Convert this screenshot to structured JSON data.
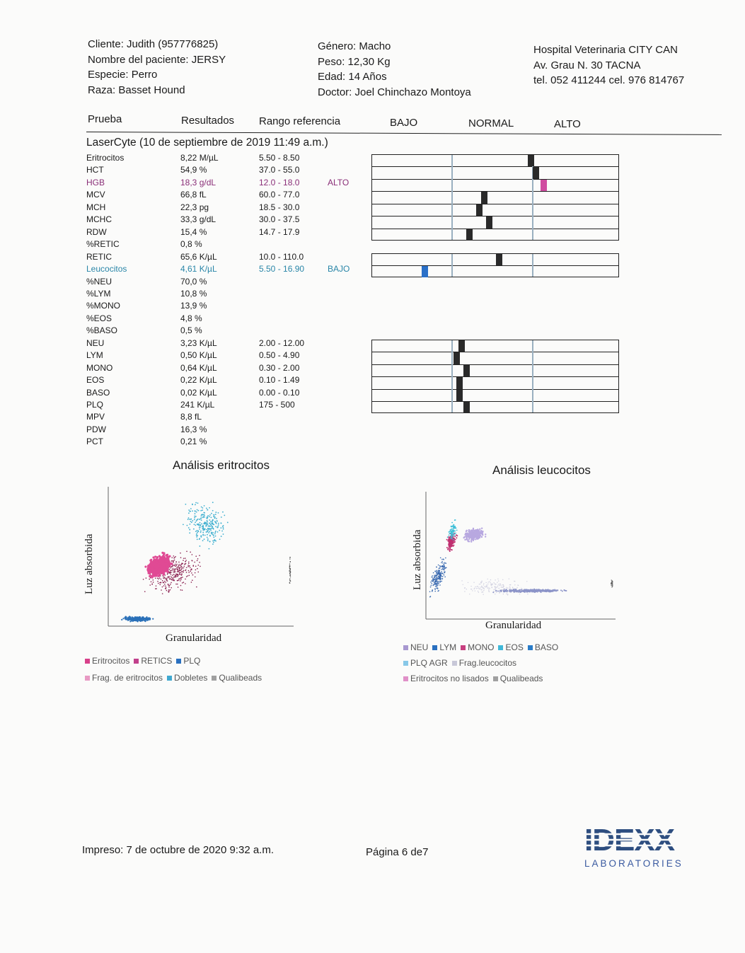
{
  "client": {
    "cliente": "Cliente: Judith (957776825)",
    "paciente": "Nombre del paciente: JERSY",
    "especie": "Especie: Perro",
    "raza": "Raza: Basset Hound"
  },
  "patient": {
    "genero": "Género: Macho",
    "peso": "Peso: 12,30 Kg",
    "edad": "Edad: 14 Años",
    "doctor": "Doctor: Joel  Chinchazo Montoya"
  },
  "hospital": {
    "name": "Hospital Veterinaria CITY CAN",
    "address": "Av. Grau N. 30 TACNA",
    "phone": "tel. 052 411244 cel. 976 814767"
  },
  "columns": {
    "prueba": "Prueba",
    "resultados": "Resultados",
    "rango": "Rango referencia",
    "bajo": "BAJO",
    "normal": "NORMAL",
    "alto": "ALTO"
  },
  "session": "LaserCyte (10 de septiembre de 2019 11:49 a.m.)",
  "results": [
    {
      "name": "Eritrocitos",
      "value": "8,22 M/µL",
      "range": "5.50 - 8.50",
      "flag": "",
      "status": "normal",
      "position": 0.64
    },
    {
      "name": "HCT",
      "value": "54,9 %",
      "range": "37.0 - 55.0",
      "flag": "",
      "status": "normal",
      "position": 0.66
    },
    {
      "name": "HGB",
      "value": "18,3 g/dL",
      "range": "12.0 - 18.0",
      "flag": "ALTO",
      "status": "high",
      "position": 0.69
    },
    {
      "name": "MCV",
      "value": "66,8 fL",
      "range": "60.0 - 77.0",
      "flag": "",
      "status": "normal",
      "position": 0.45
    },
    {
      "name": "MCH",
      "value": "22,3 pg",
      "range": "18.5 - 30.0",
      "flag": "",
      "status": "normal",
      "position": 0.43
    },
    {
      "name": "MCHC",
      "value": "33,3 g/dL",
      "range": "30.0 - 37.5",
      "flag": "",
      "status": "normal",
      "position": 0.47
    },
    {
      "name": "RDW",
      "value": "15,4 %",
      "range": "14.7 - 17.9",
      "flag": "",
      "status": "normal",
      "position": 0.39
    },
    {
      "name": "%RETIC",
      "value": "0,8 %",
      "range": "",
      "flag": "",
      "status": "none",
      "position": null
    },
    {
      "name": "RETIC",
      "value": "65,6 K/µL",
      "range": "10.0 - 110.0",
      "flag": "",
      "status": "normal",
      "position": 0.51
    },
    {
      "name": "Leucocitos",
      "value": "4,61 K/µL",
      "range": "5.50 - 16.90",
      "flag": "BAJO",
      "status": "low",
      "position": 0.21
    },
    {
      "name": "%NEU",
      "value": "70,0 %",
      "range": "",
      "flag": "",
      "status": "none",
      "position": null
    },
    {
      "name": "%LYM",
      "value": "10,8 %",
      "range": "",
      "flag": "",
      "status": "none",
      "position": null
    },
    {
      "name": "%MONO",
      "value": "13,9 %",
      "range": "",
      "flag": "",
      "status": "none",
      "position": null
    },
    {
      "name": "%EOS",
      "value": "4,8 %",
      "range": "",
      "flag": "",
      "status": "none",
      "position": null
    },
    {
      "name": "%BASO",
      "value": "0,5 %",
      "range": "",
      "flag": "",
      "status": "none",
      "position": null
    },
    {
      "name": "NEU",
      "value": "3,23 K/µL",
      "range": "2.00 - 12.00",
      "flag": "",
      "status": "normal",
      "position": 0.36
    },
    {
      "name": "LYM",
      "value": "0,50 K/µL",
      "range": "0.50 - 4.90",
      "flag": "",
      "status": "normal",
      "position": 0.34
    },
    {
      "name": "MONO",
      "value": "0,64 K/µL",
      "range": "0.30 - 2.00",
      "flag": "",
      "status": "normal",
      "position": 0.38
    },
    {
      "name": "EOS",
      "value": "0,22 K/µL",
      "range": "0.10 - 1.49",
      "flag": "",
      "status": "normal",
      "position": 0.35
    },
    {
      "name": "BASO",
      "value": "0,02 K/µL",
      "range": "0.00 - 0.10",
      "flag": "",
      "status": "normal",
      "position": 0.35
    },
    {
      "name": "PLQ",
      "value": "241 K/µL",
      "range": "175 - 500",
      "flag": "",
      "status": "normal",
      "position": 0.38
    },
    {
      "name": "MPV",
      "value": "8,8 fL",
      "range": "",
      "flag": "",
      "status": "none",
      "position": null
    },
    {
      "name": "PDW",
      "value": "16,3 %",
      "range": "",
      "flag": "",
      "status": "none",
      "position": null
    },
    {
      "name": "PCT",
      "value": "0,21 %",
      "range": "",
      "flag": "",
      "status": "none",
      "position": null
    }
  ],
  "plots": {
    "eritro": {
      "title": "Análisis eritrocitos",
      "ylabel": "Luz absorbida",
      "xlabel": "Granularidad",
      "legend": [
        "Eritrocitos",
        "RETICS",
        "PLQ",
        "Frag. de eritrocitos",
        "Dobletes",
        "Qualibeads"
      ],
      "legend_colors": [
        "#d8408a",
        "#c2408c",
        "#2a70c0",
        "#e89ac4",
        "#40a8d0",
        "#a0a0a0"
      ]
    },
    "leuco": {
      "title": "Análisis leucocitos",
      "ylabel": "Luz absorbida",
      "xlabel": "Granularidad",
      "legend": [
        "NEU",
        "LYM",
        "MONO",
        "EOS",
        "BASO",
        "PLQ AGR",
        "Frag.leucocitos",
        "Eritrocitos no lisados",
        "Qualibeads"
      ],
      "legend_colors": [
        "#a898d0",
        "#2a70c0",
        "#c84080",
        "#40b8d8",
        "#2a7cc8",
        "#88c8e8",
        "#c8c8d8",
        "#e090c8",
        "#a0a0a0"
      ]
    }
  },
  "colors": {
    "high": "#d04ca0",
    "low": "#2a70c8",
    "normal": "#2a2a2a"
  },
  "footer": {
    "printed": "Impreso: 7 de octubre de 2020 9:32 a.m.",
    "page": "Página 6 de7"
  },
  "logo": {
    "name": "IDEXX",
    "sub": "LABORATORIES"
  }
}
